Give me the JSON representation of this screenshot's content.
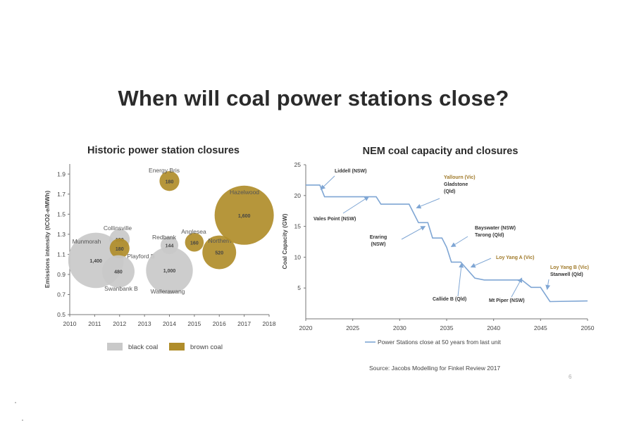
{
  "title": "When will coal power stations close?",
  "colors": {
    "black_coal": "#c9c9c9",
    "brown_coal": "#b08d2a",
    "line": "#7fa6d4",
    "arrow": "#7fa6d4",
    "brown_label": "#a07a2a"
  },
  "chart_data": [
    {
      "type": "scatter",
      "subtype": "bubble",
      "title": "Historic power station closures",
      "xlabel": "",
      "ylabel": "Emissions intensity (tCO2-e/MWh)",
      "xlim": [
        2010,
        2018
      ],
      "ylim": [
        0.5,
        2.0
      ],
      "x_ticks": [
        "2010",
        "2011",
        "2012",
        "2013",
        "2014",
        "2015",
        "2016",
        "2017",
        "2018"
      ],
      "y_ticks": [
        "0.5",
        "0.7",
        "0.9",
        "1.1",
        "1.3",
        "1.5",
        "1.7",
        "1.9"
      ],
      "grid": false,
      "legend": {
        "position": "bottom",
        "items": [
          {
            "label": "black coal",
            "type": "black"
          },
          {
            "label": "brown coal",
            "type": "brown"
          }
        ]
      },
      "points": [
        {
          "name": "Munmorah",
          "x": 2011.05,
          "y": 1.04,
          "size": 1400,
          "size_label": "1,400",
          "type": "black"
        },
        {
          "name": "Collinsville",
          "x": 2012.0,
          "y": 1.25,
          "size": 190,
          "size_label": "190",
          "type": "black"
        },
        {
          "name": "",
          "x": 2012.0,
          "y": 1.16,
          "size": 180,
          "size_label": "180",
          "type": "brown"
        },
        {
          "name": "Swanbank B",
          "x": 2011.95,
          "y": 0.93,
          "size": 480,
          "size_label": "480",
          "type": "black"
        },
        {
          "name": "Playford B",
          "x": null,
          "y": null,
          "size": null,
          "size_label": "",
          "type": "brown"
        },
        {
          "name": "Energy Bris",
          "x": 2014.0,
          "y": 1.83,
          "size": 180,
          "size_label": "180",
          "type": "brown"
        },
        {
          "name": "Redbank",
          "x": 2014.0,
          "y": 1.19,
          "size": 144,
          "size_label": "144",
          "type": "black"
        },
        {
          "name": "Wallerawang",
          "x": 2014.0,
          "y": 0.94,
          "size": 1000,
          "size_label": "1,000",
          "type": "black"
        },
        {
          "name": "Anglesea",
          "x": 2015.0,
          "y": 1.22,
          "size": 160,
          "size_label": "160",
          "type": "brown"
        },
        {
          "name": "Northern",
          "x": 2016.0,
          "y": 1.12,
          "size": 520,
          "size_label": "520",
          "type": "brown"
        },
        {
          "name": "Hazelwood",
          "x": 2017.0,
          "y": 1.49,
          "size": 1600,
          "size_label": "1,600",
          "type": "brown"
        }
      ]
    },
    {
      "type": "line",
      "title": "NEM coal capacity and closures",
      "xlabel": "",
      "ylabel": "Coal Capacity (GW)",
      "xlim": [
        2020,
        2050
      ],
      "ylim": [
        0,
        25
      ],
      "x_ticks": [
        "2020",
        "2025",
        "2030",
        "2035",
        "2040",
        "2045",
        "2050"
      ],
      "y_ticks": [
        "5",
        "10",
        "15",
        "20",
        "25"
      ],
      "grid": false,
      "legend": {
        "position": "bottom",
        "items": [
          {
            "label": "Power Stations close at 50 years from last unit"
          }
        ]
      },
      "series": [
        {
          "name": "Power Stations close at 50 years from last unit",
          "points": [
            [
              2020,
              21.7
            ],
            [
              2021.5,
              21.7
            ],
            [
              2022,
              19.8
            ],
            [
              2027.5,
              19.8
            ],
            [
              2028,
              18.6
            ],
            [
              2031,
              18.6
            ],
            [
              2032,
              15.6
            ],
            [
              2033,
              15.6
            ],
            [
              2033.5,
              13.1
            ],
            [
              2034.5,
              13.1
            ],
            [
              2035,
              11.6
            ],
            [
              2035.5,
              9.2
            ],
            [
              2036.5,
              9.2
            ],
            [
              2038,
              6.6
            ],
            [
              2039,
              6.3
            ],
            [
              2043,
              6.3
            ],
            [
              2044,
              5.1
            ],
            [
              2045,
              5.1
            ],
            [
              2046,
              2.8
            ],
            [
              2050,
              2.9
            ]
          ]
        }
      ],
      "annotations": [
        {
          "text": "Liddell (NSW)",
          "color": "dark",
          "to": [
            2021.6,
            21.0
          ]
        },
        {
          "text": "Vales Point (NSW)",
          "color": "dark",
          "to": [
            2026.7,
            19.8
          ]
        },
        {
          "text": "Yallourn (Vic)",
          "color": "brown",
          "to": null
        },
        {
          "text": "Gladstone (Qld)",
          "color": "dark",
          "to": [
            2031.8,
            18.0
          ]
        },
        {
          "text": "Eraring (NSW)",
          "color": "dark",
          "to": [
            2032.7,
            15.0
          ]
        },
        {
          "text": "Bayswater (NSW) Tarong (Qld)",
          "color": "dark",
          "to": [
            2035.5,
            11.7
          ]
        },
        {
          "text": "Loy Yang A (Vic)",
          "color": "brown",
          "to": [
            2037.6,
            8.4
          ]
        },
        {
          "text": "Callide B (Qld)",
          "color": "dark",
          "to": [
            2036.6,
            9.0
          ]
        },
        {
          "text": "Mt Piper (NSW)",
          "color": "dark",
          "to": [
            2043.0,
            6.6
          ]
        },
        {
          "text": "Loy Yang B (Vic)",
          "color": "brown",
          "to": null
        },
        {
          "text": "Stanwell (Qld)",
          "color": "dark",
          "to": [
            2045.7,
            4.8
          ]
        }
      ]
    }
  ],
  "source": "Source: Jacobs Modelling for Finkel Review 2017",
  "page_number": "6"
}
